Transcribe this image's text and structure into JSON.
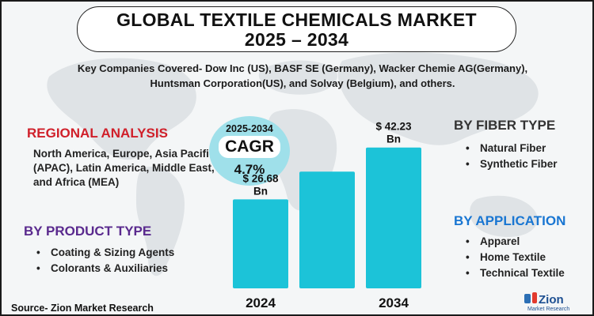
{
  "title": {
    "line1": "GLOBAL TEXTILE CHEMICALS MARKET",
    "line2": "2025 – 2034"
  },
  "companies": "Key Companies Covered- Dow Inc (US), BASF SE (Germany), Wacker Chemie AG(Germany), Huntsman Corporation(US), and Solvay (Belgium), and others.",
  "regional": {
    "heading": "REGIONAL ANALYSIS",
    "text": "North America, Europe, Asia Pacific (APAC), Latin America, Middle East, and Africa (MEA)"
  },
  "product_type": {
    "heading": "BY PRODUCT TYPE",
    "items": [
      "Coating & Sizing Agents",
      "Colorants & Auxiliaries"
    ]
  },
  "fiber_type": {
    "heading": "BY FIBER TYPE",
    "items": [
      "Natural Fiber",
      "Synthetic Fiber"
    ]
  },
  "application": {
    "heading": "BY APPLICATION",
    "items": [
      "Apparel",
      "Home Textile",
      "Technical Textile"
    ]
  },
  "cagr": {
    "years": "2025-2034",
    "label": "CAGR",
    "value": "4.7%"
  },
  "chart_data": {
    "type": "bar",
    "categories": [
      "2024",
      "",
      "2034"
    ],
    "values": [
      26.68,
      35.0,
      42.23
    ],
    "value_labels": [
      "$ 26.68\nBn",
      "",
      "$ 42.23\nBn"
    ],
    "tick_labels": [
      "2024",
      "",
      "2034"
    ],
    "ylim": [
      0,
      45
    ],
    "bar_color": "#1cc3d8",
    "grid": false,
    "legend": "none"
  },
  "source": "Source- Zion Market Research",
  "logo": {
    "name": "zion-logo",
    "text": "Zion",
    "subtext": "Market Research"
  },
  "colors": {
    "bar": "#1cc3d8",
    "cagr_circle": "#9fe0ea",
    "regional_heading": "#d0202a",
    "product_heading": "#5a2a8e",
    "application_heading": "#1976d2"
  },
  "icons": {
    "bullet": "bullet-dot-icon",
    "map": "world-map-icon"
  }
}
